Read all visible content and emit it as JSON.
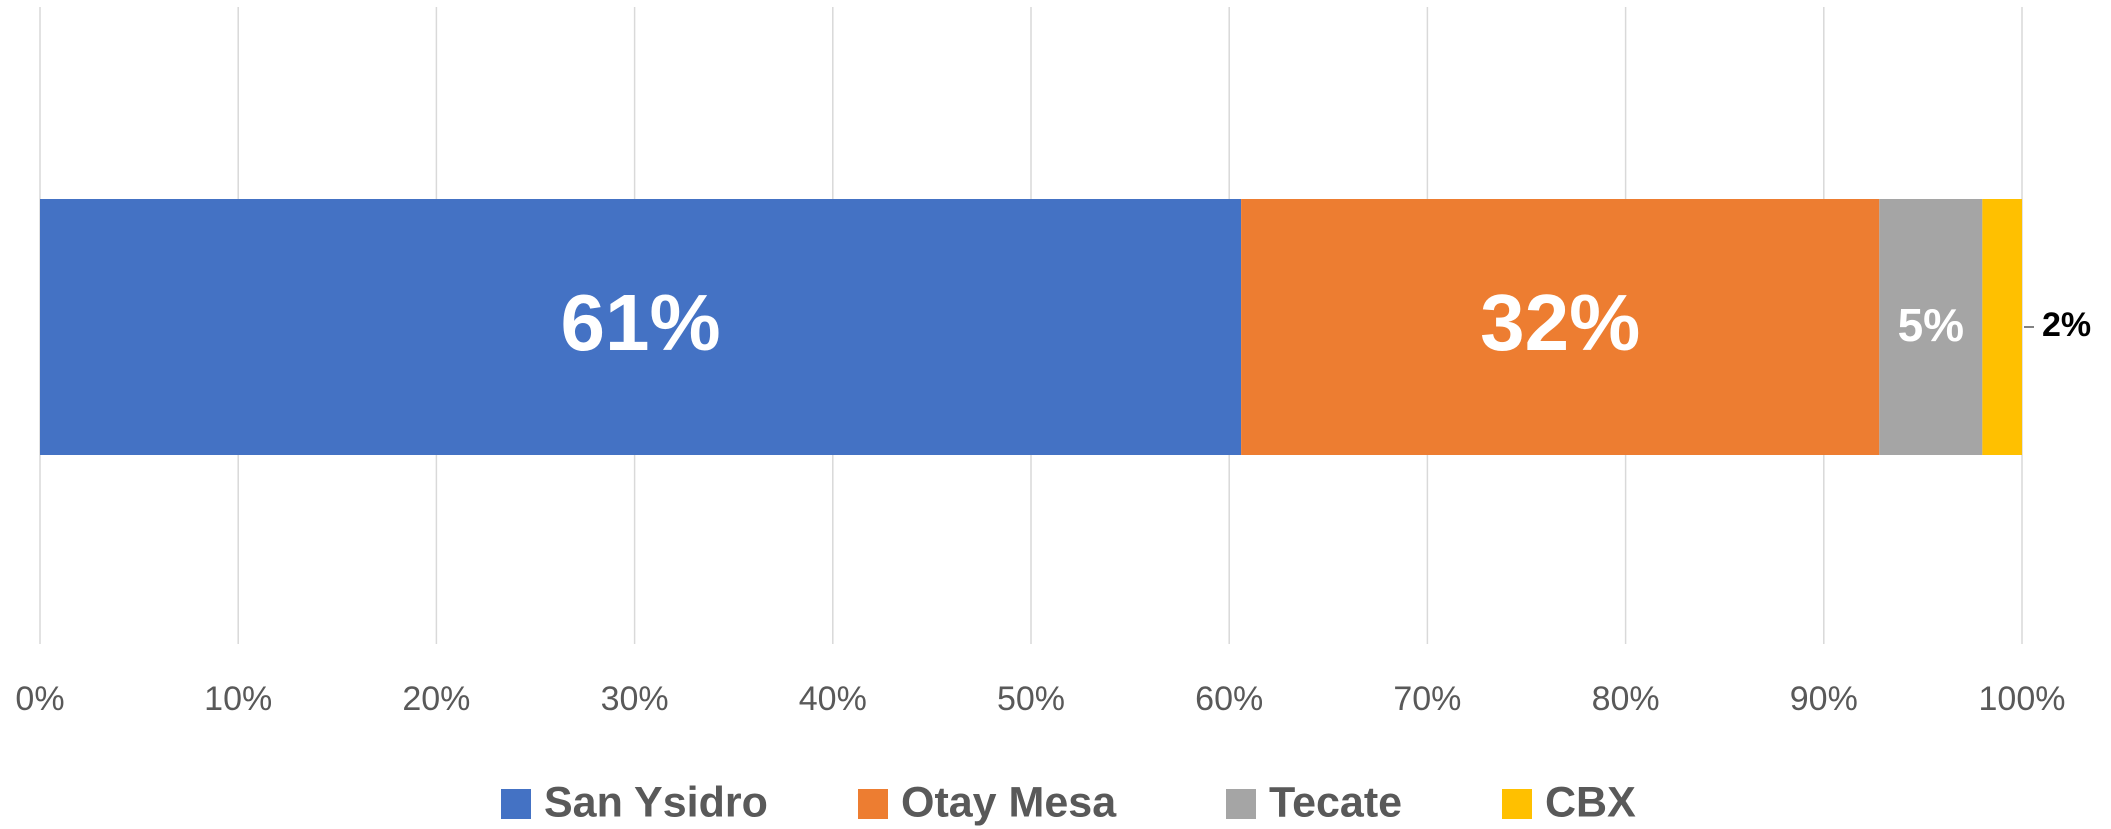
{
  "chart_data": {
    "type": "stacked-bar-horizontal",
    "categories": [
      null
    ],
    "series": [
      {
        "name": "San Ysidro",
        "color": "#4472c4",
        "values": [
          60.6
        ],
        "value_labels": [
          "61%"
        ]
      },
      {
        "name": "Otay Mesa",
        "color": "#ed7d31",
        "values": [
          32.2
        ],
        "value_labels": [
          "32%"
        ]
      },
      {
        "name": "Tecate",
        "color": "#a5a5a5",
        "values": [
          5.2
        ],
        "value_labels": [
          "5%"
        ]
      },
      {
        "name": "CBX",
        "color": "#ffc000",
        "values": [
          2.0
        ],
        "value_labels": [
          "2%"
        ]
      }
    ],
    "xlim": [
      0,
      100
    ],
    "xticks": [
      {
        "value": 0,
        "label": "0%"
      },
      {
        "value": 10,
        "label": "10%"
      },
      {
        "value": 20,
        "label": "20%"
      },
      {
        "value": 30,
        "label": "30%"
      },
      {
        "value": 40,
        "label": "40%"
      },
      {
        "value": 50,
        "label": "50%"
      },
      {
        "value": 60,
        "label": "60%"
      },
      {
        "value": 70,
        "label": "70%"
      },
      {
        "value": 80,
        "label": "80%"
      },
      {
        "value": 90,
        "label": "90%"
      },
      {
        "value": 100,
        "label": "100%"
      }
    ],
    "grid": true,
    "legend": "bottom"
  }
}
